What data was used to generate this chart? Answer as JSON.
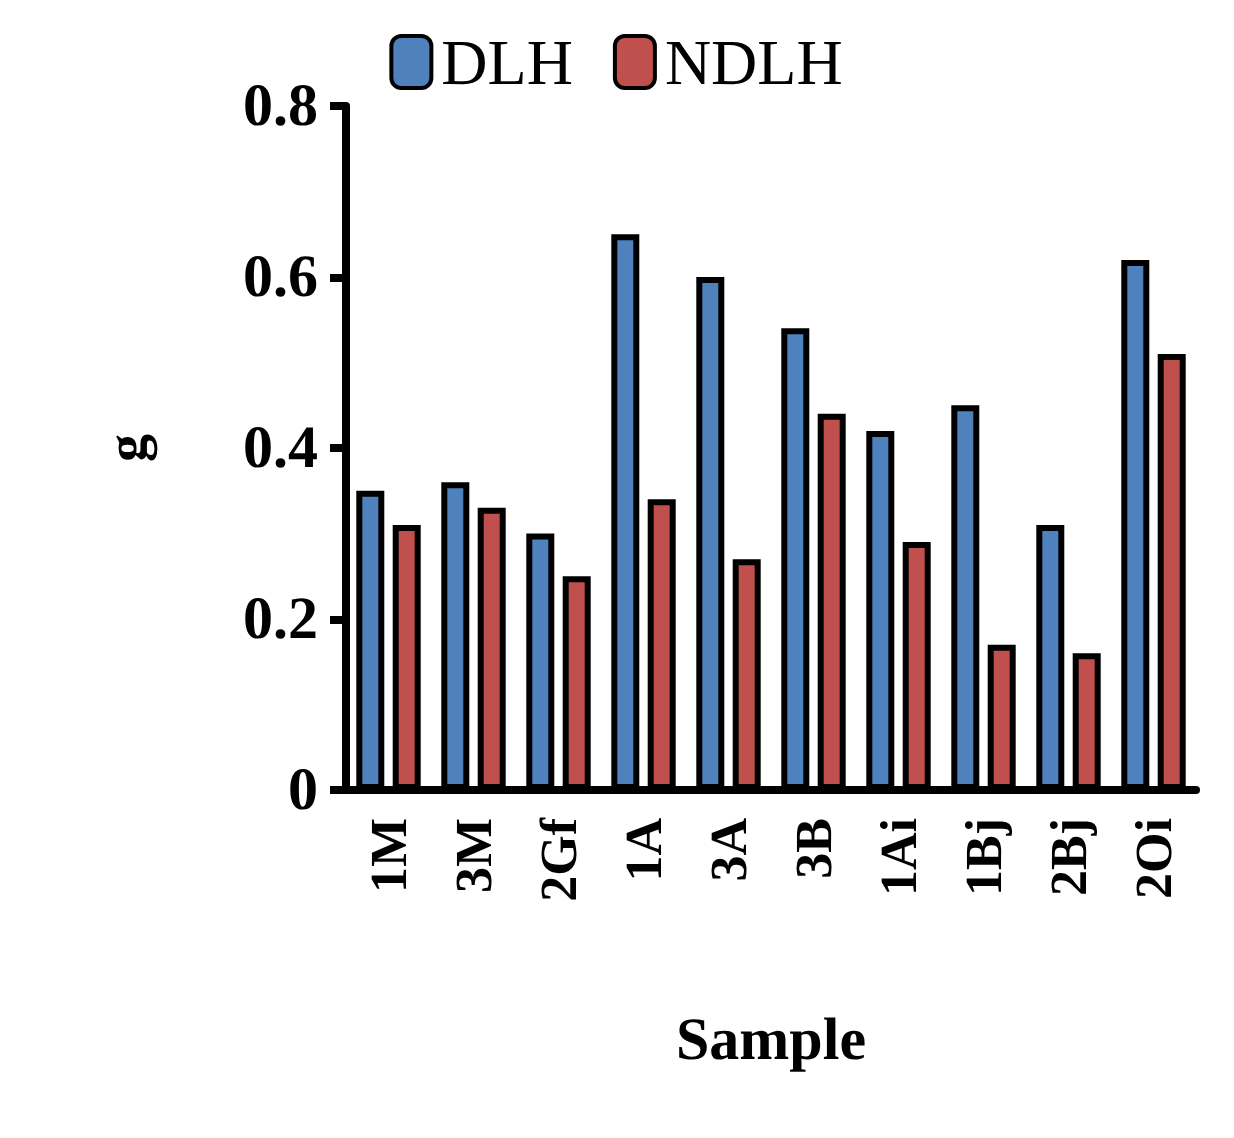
{
  "chart_data": {
    "type": "bar",
    "xlabel": "Sample",
    "ylabel": "g",
    "categories": [
      "1M",
      "3M",
      "2Gf",
      "1A",
      "3A",
      "3B",
      "1Ai",
      "1Bj",
      "2Bj",
      "2Oi"
    ],
    "series": [
      {
        "name": "DLH",
        "color": "#4f81bd",
        "values": [
          0.35,
          0.36,
          0.3,
          0.65,
          0.6,
          0.54,
          0.42,
          0.45,
          0.31,
          0.62
        ]
      },
      {
        "name": "NDLH",
        "color": "#c0504d",
        "values": [
          0.31,
          0.33,
          0.25,
          0.34,
          0.27,
          0.44,
          0.29,
          0.17,
          0.16,
          0.51
        ]
      }
    ],
    "ylim": [
      0,
      0.8
    ],
    "yticks": [
      0,
      0.2,
      0.4,
      0.6,
      0.8
    ],
    "grid": false,
    "legend": "top"
  }
}
